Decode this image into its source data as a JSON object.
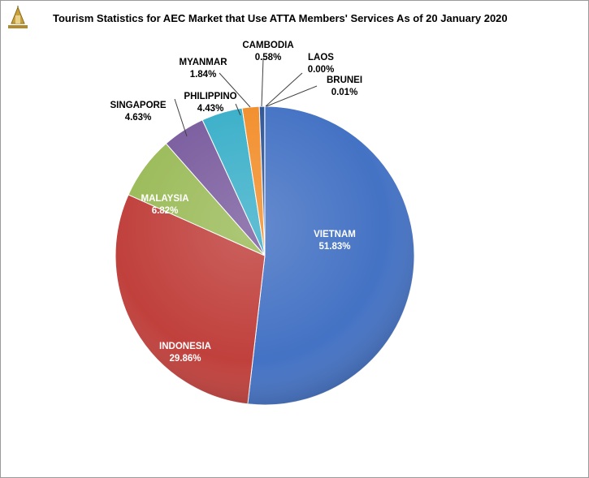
{
  "chart_data": {
    "type": "pie",
    "title": "Tourism Statistics for AEC Market that Use ATTA Members' Services As of 20 January 2020",
    "slices": [
      {
        "name": "VIETNAM",
        "value": 51.83,
        "label": "51.83%",
        "color": "#4472C4"
      },
      {
        "name": "INDONESIA",
        "value": 29.86,
        "label": "29.86%",
        "color": "#C0403C"
      },
      {
        "name": "MALAYSIA",
        "value": 6.82,
        "label": "6.82%",
        "color": "#9BBB59"
      },
      {
        "name": "SINGAPORE",
        "value": 4.63,
        "label": "4.63%",
        "color": "#7A5C9E"
      },
      {
        "name": "PHILIPPINO",
        "value": 4.43,
        "label": "4.43%",
        "color": "#3AAFC9"
      },
      {
        "name": "MYANMAR",
        "value": 1.84,
        "label": "1.84%",
        "color": "#F28E2B"
      },
      {
        "name": "CAMBODIA",
        "value": 0.58,
        "label": "0.58%",
        "color": "#2E5597"
      },
      {
        "name": "LAOS",
        "value": 0.0,
        "label": "0.00%",
        "color": "#8B2E2E"
      },
      {
        "name": "BRUNEI",
        "value": 0.01,
        "label": "0.01%",
        "color": "#6E8A3A"
      }
    ]
  }
}
